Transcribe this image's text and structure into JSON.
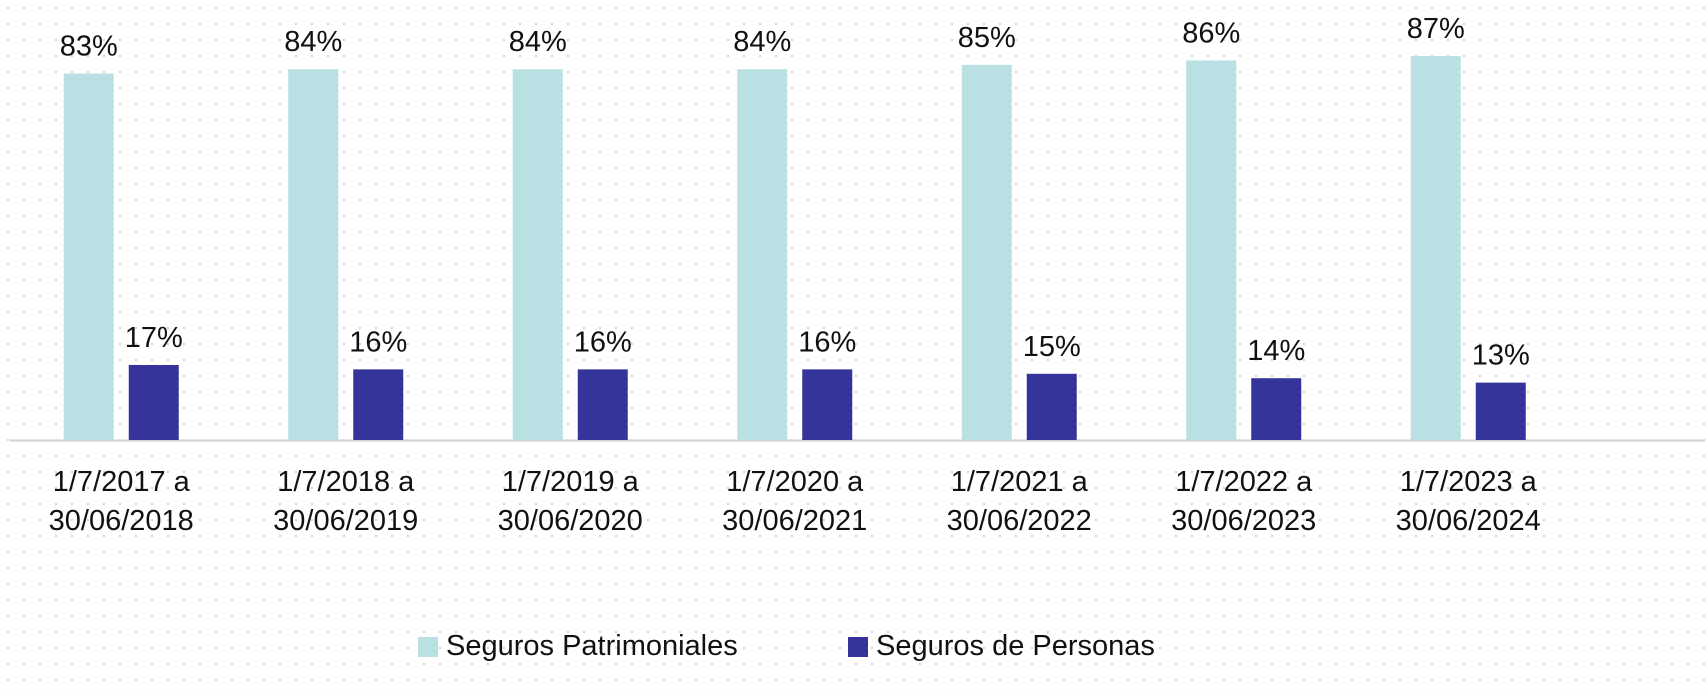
{
  "chart_data": {
    "type": "bar",
    "categories": [
      "1/7/2017 a 30/06/2018",
      "1/7/2018 a 30/06/2019",
      "1/7/2019 a 30/06/2020",
      "1/7/2020 a 30/06/2021",
      "1/7/2021 a 30/06/2022",
      "1/7/2022 a 30/06/2023",
      "1/7/2023 a 30/06/2024"
    ],
    "series": [
      {
        "name": "Seguros Patrimoniales",
        "color": "#b9e0e3",
        "values": [
          83,
          84,
          84,
          84,
          85,
          86,
          87
        ],
        "value_labels": [
          "83%",
          "84%",
          "84%",
          "84%",
          "85%",
          "86%",
          "87%"
        ]
      },
      {
        "name": "Seguros de Personas",
        "color": "#34349b",
        "values": [
          17,
          16,
          16,
          16,
          15,
          14,
          13
        ],
        "value_labels": [
          "17%",
          "16%",
          "16%",
          "16%",
          "15%",
          "14%",
          "13%"
        ]
      }
    ],
    "legend": "bottom"
  }
}
